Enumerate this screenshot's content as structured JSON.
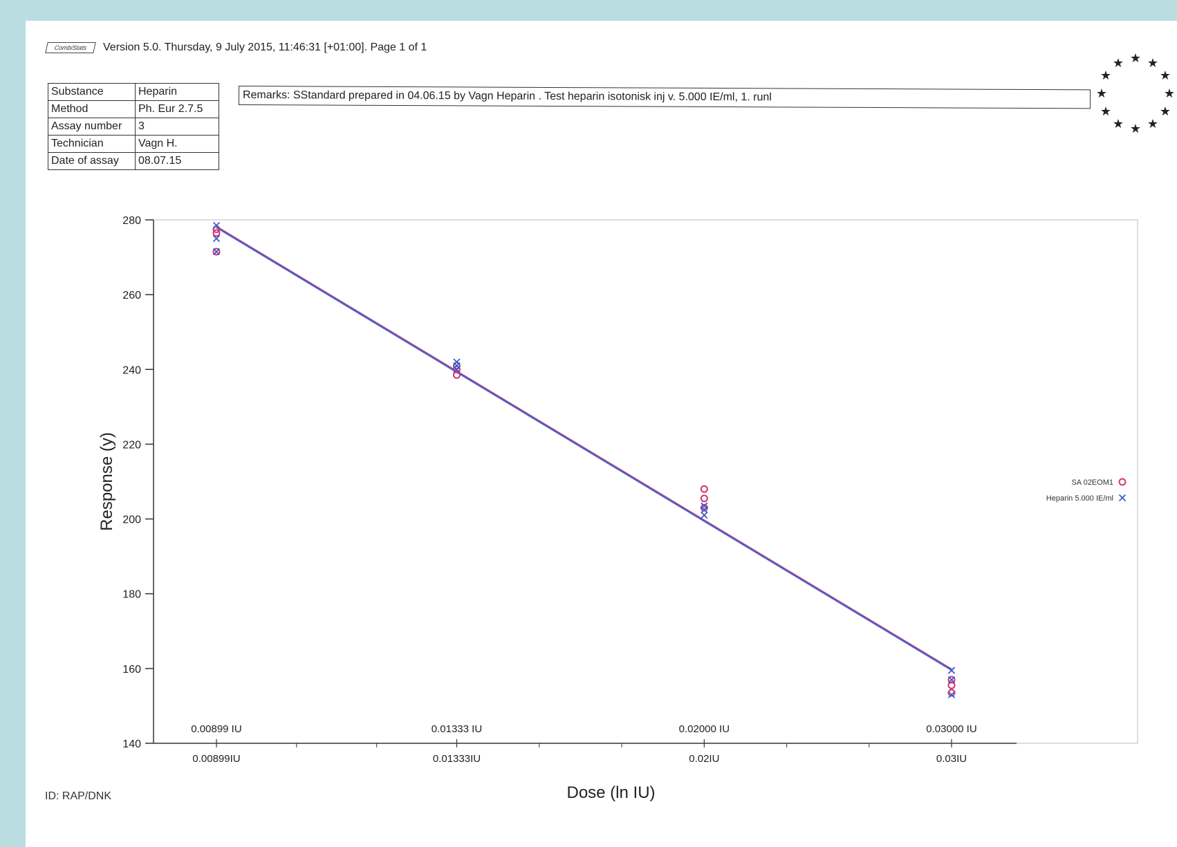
{
  "header": {
    "logo_text": "CombiStats",
    "version_line": "Version 5.0. Thursday, 9 July 2015, 11:46:31 [+01:00]. Page 1 of 1"
  },
  "meta_table": [
    {
      "key": "Substance",
      "value": "Heparin"
    },
    {
      "key": "Method",
      "value": "Ph. Eur 2.7.5"
    },
    {
      "key": "Assay number",
      "value": "3"
    },
    {
      "key": "Technician",
      "value": "Vagn H."
    },
    {
      "key": "Date of assay",
      "value": "08.07.15"
    }
  ],
  "remarks": "Remarks: SStandard prepared in 04.06.15 by Vagn Heparin . Test heparin isotonisk inj v. 5.000 IE/ml, 1. runl",
  "footer": {
    "id": "ID: RAP/DNK"
  },
  "chart_data": {
    "type": "scatter",
    "xlabel": "Dose (ln IU)",
    "ylabel": "Response (y)",
    "ylim": [
      140,
      280
    ],
    "y_ticks": [
      140,
      160,
      180,
      200,
      220,
      240,
      260,
      280
    ],
    "x_ticks_top": [
      "0.00899 IU",
      "0.01333 IU",
      "0.02000 IU",
      "0.03000 IU"
    ],
    "x_ticks_bottom": [
      "0.00899IU",
      "0.01333IU",
      "0.02IU",
      "0.03IU"
    ],
    "x_doses": [
      0.00899,
      0.01333,
      0.02,
      0.03
    ],
    "legend_position": "right",
    "series": [
      {
        "name": "SA 02EOM1",
        "marker": "circle",
        "color": "#d6336c",
        "points": [
          {
            "dose": 0.00899,
            "values": [
              276.5,
              277.5,
              271.5
            ]
          },
          {
            "dose": 0.01333,
            "values": [
              238.5,
              240.0,
              241.0
            ]
          },
          {
            "dose": 0.02,
            "values": [
              208.0,
              205.5,
              203.0
            ]
          },
          {
            "dose": 0.03,
            "values": [
              157.0,
              155.5,
              153.5
            ]
          }
        ],
        "fit": [
          {
            "dose": 0.00899,
            "y": 278.2
          },
          {
            "dose": 0.03,
            "y": 159.8
          }
        ]
      },
      {
        "name": "Heparin 5.000 IE/ml",
        "marker": "cross",
        "color": "#3b5bcc",
        "points": [
          {
            "dose": 0.00899,
            "values": [
              278.5,
              275.0,
              271.5
            ]
          },
          {
            "dose": 0.01333,
            "values": [
              242.0,
              241.0,
              240.0
            ]
          },
          {
            "dose": 0.02,
            "values": [
              203.5,
              202.5,
              201.0
            ]
          },
          {
            "dose": 0.03,
            "values": [
              159.5,
              157.0,
              153.0
            ]
          }
        ],
        "fit": [
          {
            "dose": 0.00899,
            "y": 278.0
          },
          {
            "dose": 0.03,
            "y": 159.6
          }
        ]
      }
    ]
  }
}
